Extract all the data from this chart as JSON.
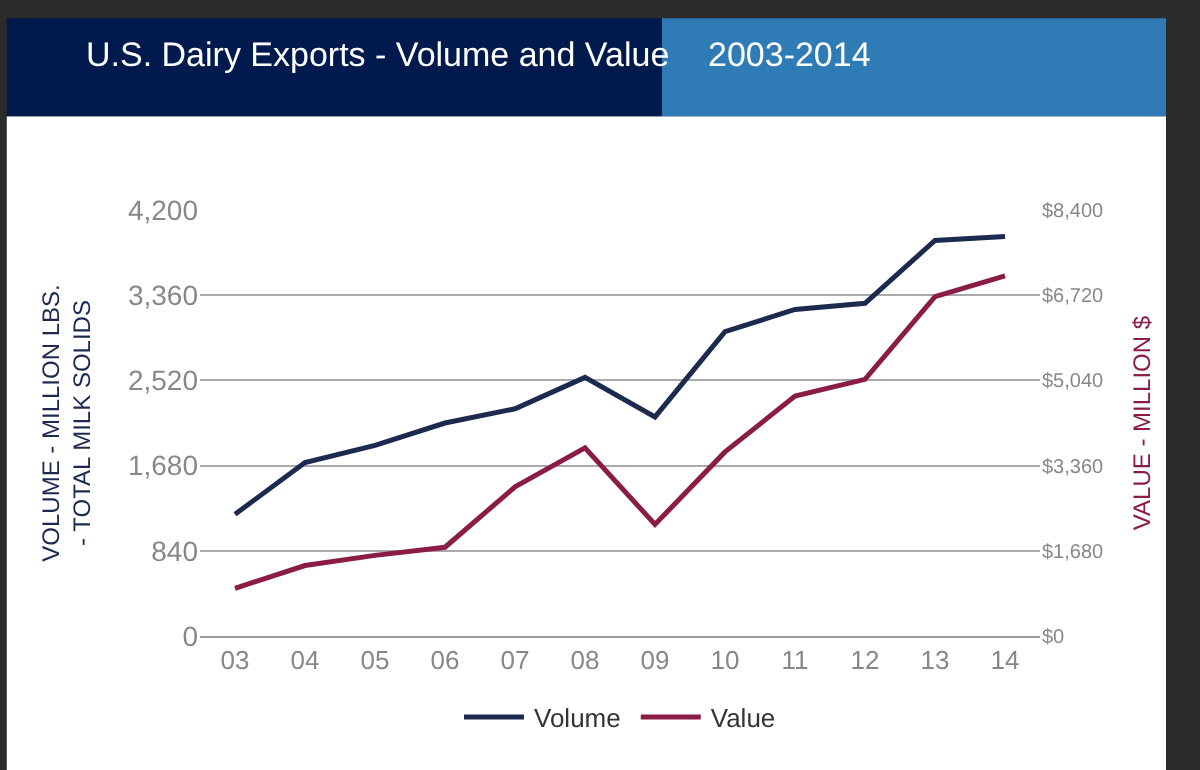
{
  "chart_data": {
    "type": "line",
    "title": "U.S. Dairy Exports - Volume and Value",
    "subtitle": "2003-2014",
    "categories": [
      "03",
      "04",
      "05",
      "06",
      "07",
      "08",
      "09",
      "10",
      "11",
      "12",
      "13",
      "14"
    ],
    "series": [
      {
        "name": "Volume",
        "color": "#1b2a4e",
        "values": [
          1200,
          1710,
          1880,
          2100,
          2240,
          2550,
          2160,
          3000,
          3220,
          3280,
          3900,
          3940
        ]
      },
      {
        "name": "Value",
        "color": "#8b1c45",
        "axis": "y2",
        "values": [
          940,
          1390,
          1590,
          1750,
          2940,
          3710,
          2200,
          3630,
          4730,
          5060,
          6690,
          7100
        ]
      }
    ],
    "ylabel": "VOLUME - MILLION LBS.\n- TOTAL MILK SOLIDS",
    "y2label": "VALUE - MILLION $",
    "ylim": [
      0,
      4200
    ],
    "yticks": [
      0,
      840,
      {
        "value": 1680,
        "label": "1,680"
      },
      {
        "value": 2520,
        "label": "2,520"
      },
      {
        "value": 3360,
        "label": "3,360"
      },
      {
        "value": 4200,
        "label": "4,200"
      }
    ],
    "y2lim": [
      0,
      8400
    ],
    "y2ticks": [
      {
        "value": 0,
        "label": "$0"
      },
      {
        "value": 1680,
        "label": "$1,680"
      },
      {
        "value": 3360,
        "label": "$3,360"
      },
      {
        "value": 5040,
        "label": "$5,040"
      },
      {
        "value": 6720,
        "label": "$6,720"
      },
      {
        "value": 8400,
        "label": "$8,400"
      }
    ],
    "grid": "y",
    "legend": "bottom",
    "line_style": "solid",
    "marker": "none"
  }
}
